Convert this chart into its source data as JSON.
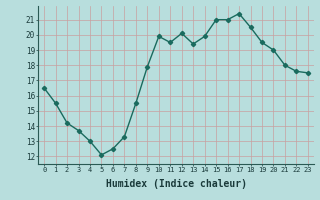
{
  "x": [
    0,
    1,
    2,
    3,
    4,
    5,
    6,
    7,
    8,
    9,
    10,
    11,
    12,
    13,
    14,
    15,
    16,
    17,
    18,
    19,
    20,
    21,
    22,
    23
  ],
  "y": [
    16.5,
    15.5,
    14.2,
    13.7,
    13.0,
    12.1,
    12.5,
    13.3,
    15.5,
    17.9,
    19.9,
    19.5,
    20.1,
    19.4,
    19.9,
    21.0,
    21.0,
    21.4,
    20.5,
    19.5,
    19.0,
    18.0,
    17.6,
    17.5
  ],
  "line_color": "#1a6b5e",
  "marker": "D",
  "markersize": 2.2,
  "linewidth": 1.0,
  "bg_color": "#b8dedd",
  "grid_color_v": "#c8a0a0",
  "grid_color_h": "#c8a0a0",
  "xlabel": "Humidex (Indice chaleur)",
  "xlabel_fontsize": 7,
  "ylabel_ticks": [
    12,
    13,
    14,
    15,
    16,
    17,
    18,
    19,
    20,
    21
  ],
  "ylim": [
    11.5,
    21.9
  ],
  "xlim": [
    -0.5,
    23.5
  ],
  "xtick_labels": [
    "0",
    "1",
    "2",
    "3",
    "4",
    "5",
    "6",
    "7",
    "8",
    "9",
    "10",
    "11",
    "12",
    "13",
    "14",
    "15",
    "16",
    "17",
    "18",
    "19",
    "20",
    "21",
    "22",
    "23"
  ]
}
